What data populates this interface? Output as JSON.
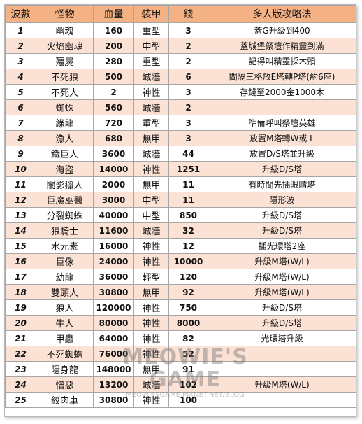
{
  "headers": [
    "波數",
    "怪物",
    "血量",
    "裝甲",
    "錢",
    "多人版攻略法"
  ],
  "rows": [
    {
      "wave": "1",
      "monster": "幽魂",
      "hp": "160",
      "armor": "重型",
      "gold": "3",
      "strategy": "蓋G升級到400"
    },
    {
      "wave": "2",
      "monster": "火焰幽魂",
      "hp": "200",
      "armor": "中型",
      "gold": "2",
      "strategy": "蓋城堡祭壇作精靈到滿"
    },
    {
      "wave": "3",
      "monster": "殭屍",
      "hp": "280",
      "armor": "重型",
      "gold": "2",
      "strategy": "記得叫精靈採木頭"
    },
    {
      "wave": "4",
      "monster": "不死狼",
      "hp": "500",
      "armor": "城牆",
      "gold": "6",
      "strategy": "間隔三格放E塔轉P塔(約6座)"
    },
    {
      "wave": "5",
      "monster": "不死人",
      "hp": "2",
      "armor": "神性",
      "gold": "3",
      "strategy": "存錢至2000金1000木"
    },
    {
      "wave": "6",
      "monster": "蜘蛛",
      "hp": "560",
      "armor": "城牆",
      "gold": "2",
      "strategy": ""
    },
    {
      "wave": "7",
      "monster": "綠龍",
      "hp": "720",
      "armor": "重型",
      "gold": "3",
      "strategy": "準備呼叫祭壇英雄"
    },
    {
      "wave": "8",
      "monster": "漁人",
      "hp": "680",
      "armor": "無甲",
      "gold": "3",
      "strategy": "放置M塔轉W或 L"
    },
    {
      "wave": "9",
      "monster": "鐵巨人",
      "hp": "3600",
      "armor": "城牆",
      "gold": "44",
      "strategy": "放置D/S塔並升級"
    },
    {
      "wave": "10",
      "monster": "海盜",
      "hp": "14000",
      "armor": "神性",
      "gold": "1251",
      "strategy": "升級D/S塔"
    },
    {
      "wave": "11",
      "monster": "闇影獵人",
      "hp": "2000",
      "armor": "無甲",
      "gold": "11",
      "strategy": "有時間先插眼睛塔"
    },
    {
      "wave": "12",
      "monster": "巨魔巫醫",
      "hp": "3000",
      "armor": "中型",
      "gold": "11",
      "strategy": "隱形波"
    },
    {
      "wave": "13",
      "monster": "分裂蜘蛛",
      "hp": "40000",
      "armor": "中型",
      "gold": "850",
      "strategy": "升級D/S塔"
    },
    {
      "wave": "14",
      "monster": "狼騎士",
      "hp": "11600",
      "armor": "城牆",
      "gold": "32",
      "strategy": "升級D/S塔"
    },
    {
      "wave": "15",
      "monster": "水元素",
      "hp": "16000",
      "armor": "神性",
      "gold": "12",
      "strategy": "插光環塔2座"
    },
    {
      "wave": "16",
      "monster": "巨像",
      "hp": "24000",
      "armor": "神性",
      "gold": "10000",
      "strategy": "升級M塔(W/L)"
    },
    {
      "wave": "17",
      "monster": "幼龍",
      "hp": "36000",
      "armor": "輕型",
      "gold": "120",
      "strategy": "升級M塔(W/L)"
    },
    {
      "wave": "18",
      "monster": "雙頭人",
      "hp": "30800",
      "armor": "無甲",
      "gold": "92",
      "strategy": "升級M塔(W/L)"
    },
    {
      "wave": "19",
      "monster": "狼人",
      "hp": "120000",
      "armor": "神性",
      "gold": "750",
      "strategy": "升級D/S塔"
    },
    {
      "wave": "20",
      "monster": "牛人",
      "hp": "80000",
      "armor": "神性",
      "gold": "8000",
      "strategy": "升級D/S塔"
    },
    {
      "wave": "21",
      "monster": "甲蟲",
      "hp": "64000",
      "armor": "神性",
      "gold": "82",
      "strategy": "光環塔升級"
    },
    {
      "wave": "22",
      "monster": "不死蜘蛛",
      "hp": "76000",
      "armor": "神性",
      "gold": "52",
      "strategy": ""
    },
    {
      "wave": "23",
      "monster": "隱身龍",
      "hp": "148000",
      "armor": "無甲",
      "gold": "91",
      "strategy": ""
    },
    {
      "wave": "24",
      "monster": "憎惡",
      "hp": "13200",
      "armor": "城牆",
      "gold": "102",
      "strategy": "升級M塔(W/L)"
    },
    {
      "wave": "25",
      "monster": "絞肉車",
      "hp": "30800",
      "armor": "神性",
      "gold": "100",
      "strategy": ""
    }
  ],
  "watermark": {
    "title": "MEOWIE'S GAME",
    "url": "MEOWIESGAME.PIXNET.NET/BLOG"
  }
}
